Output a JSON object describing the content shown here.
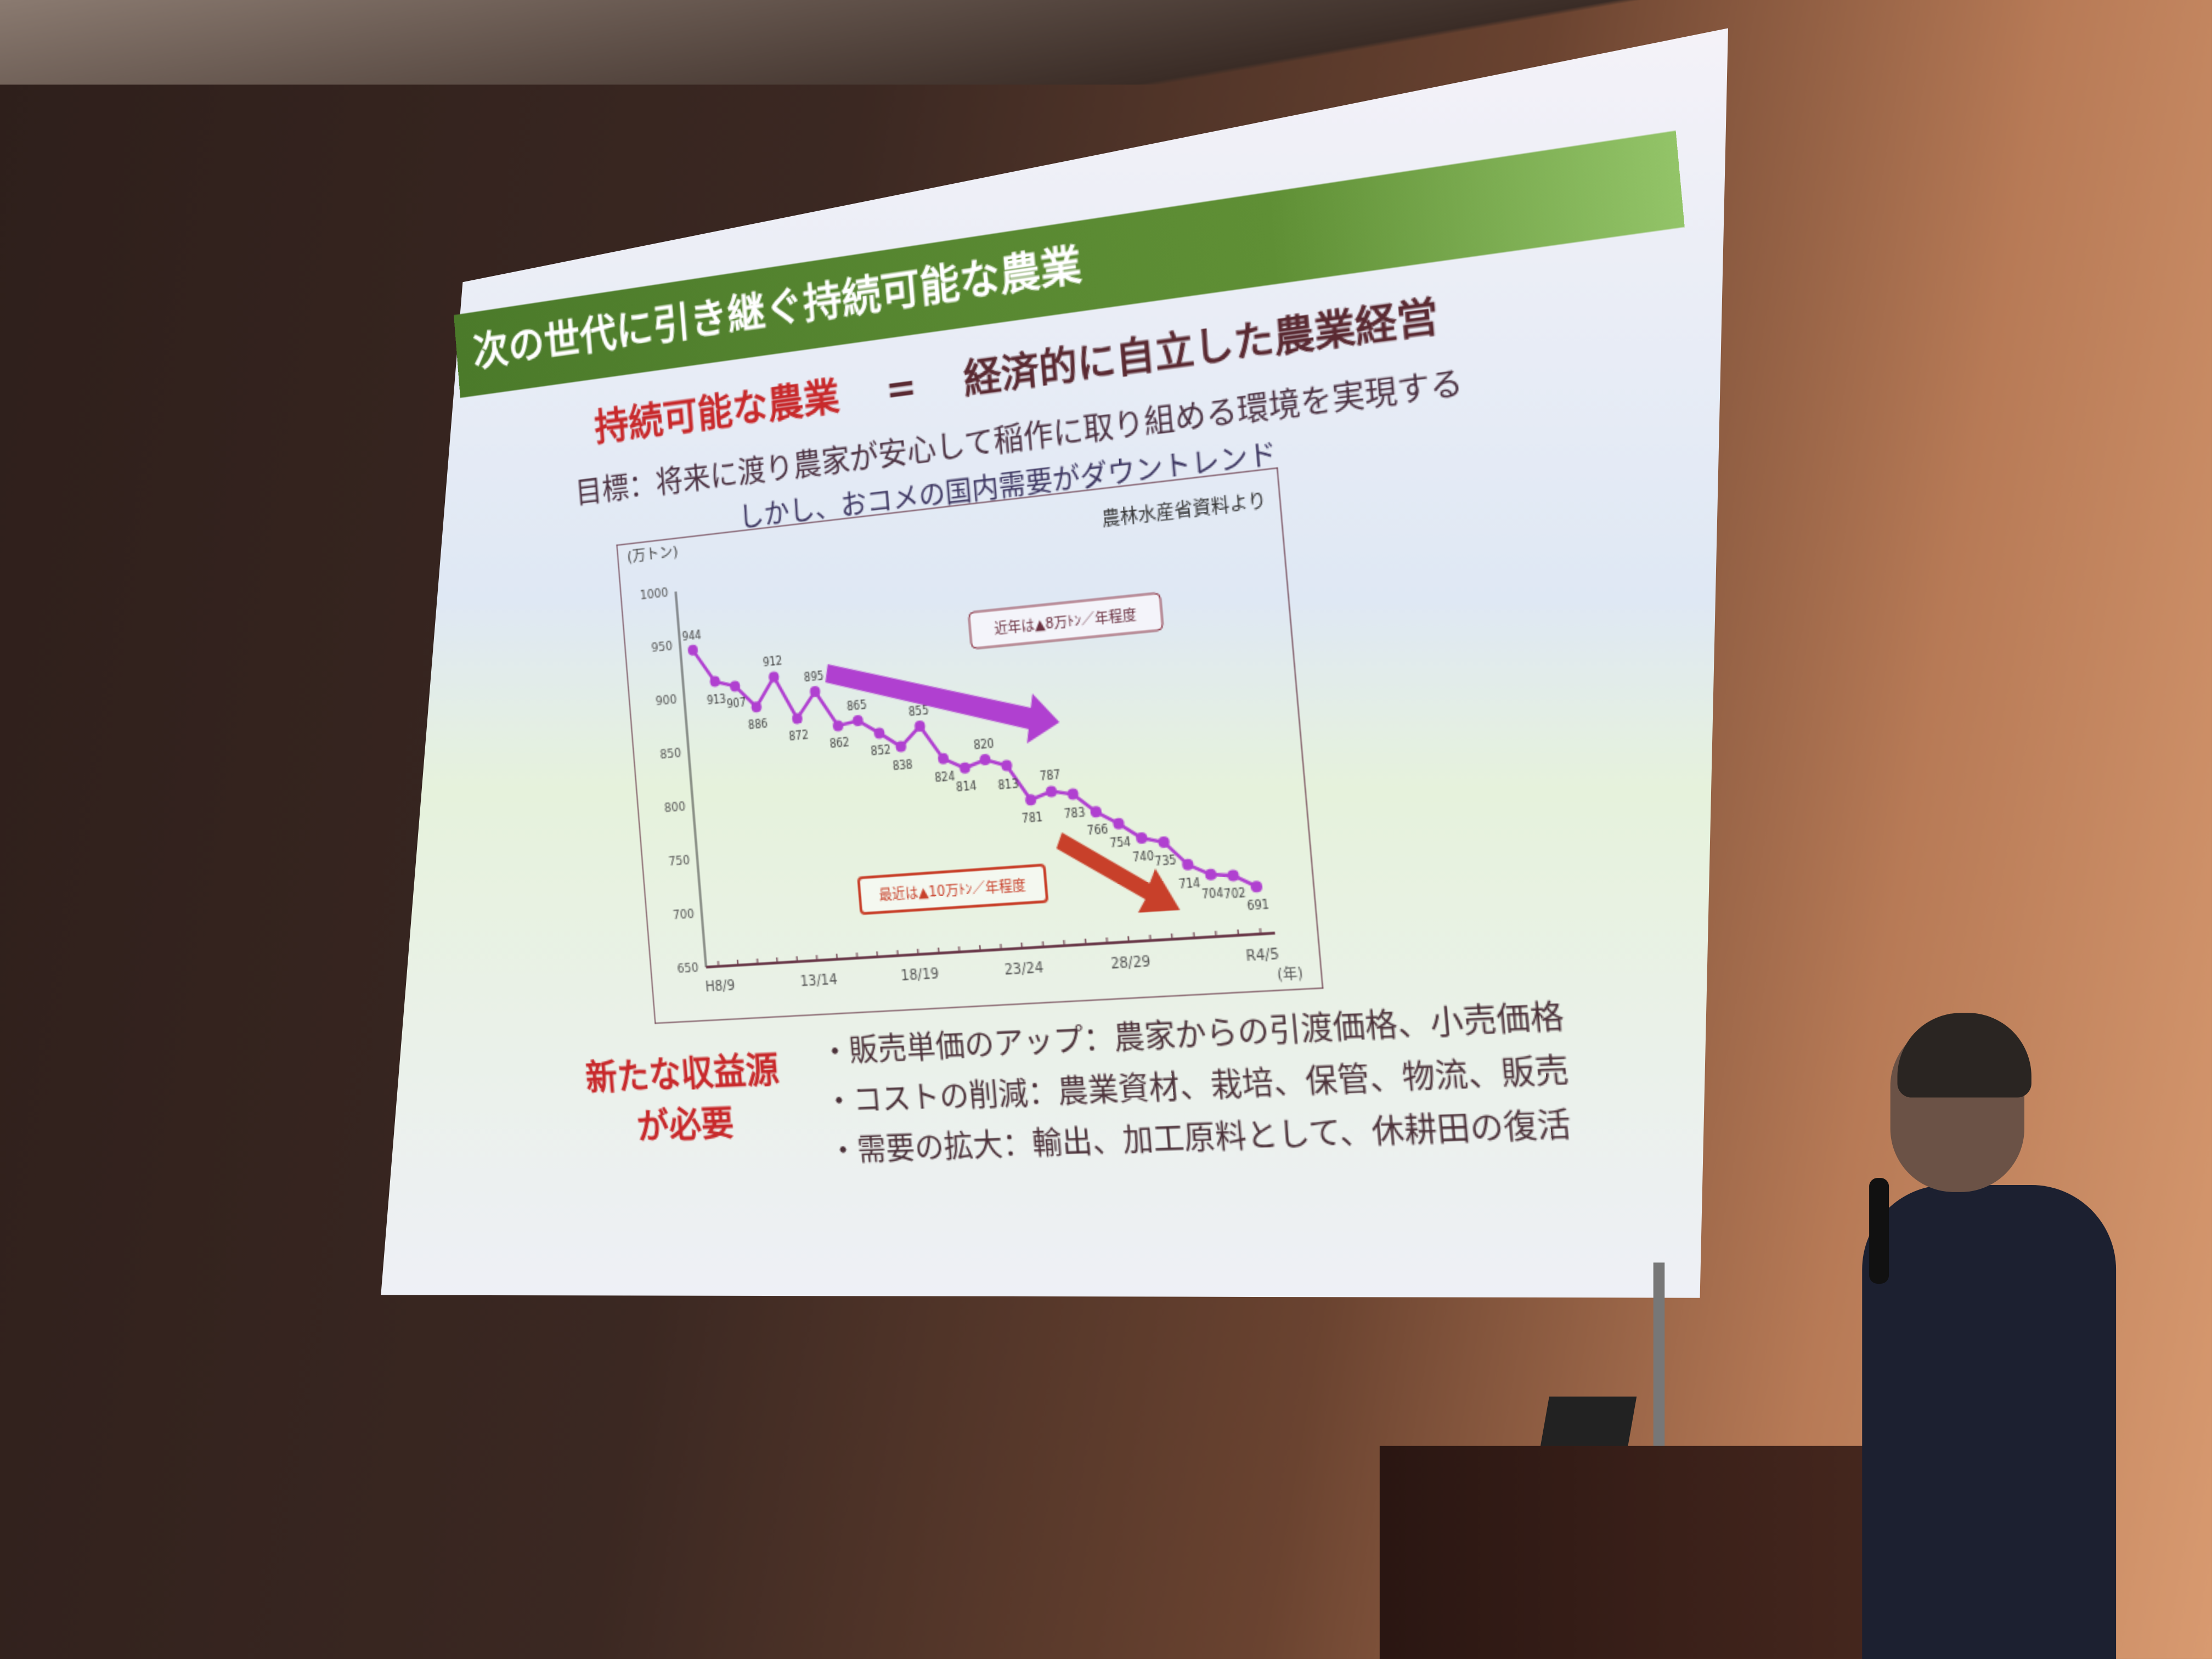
{
  "slide": {
    "title": "次の世代に引き継ぐ持続可能な農業",
    "equation_left": "持続可能な農業",
    "equation_sign": "=",
    "equation_right": "経済的に自立した農業経営",
    "goal": "目標：将来に渡り農家が安心して稲作に取り組める環境を実現する",
    "chart_subtitle": "しかし、おコメの国内需要がダウントレンド",
    "need_line1": "新たな収益源",
    "need_line2": "が必要",
    "bullets": [
      "・販売単価のアップ：農家からの引渡価格、小売価格",
      "・コストの削減：農業資材、栽培、保管、物流、販売",
      "・需要の拡大：輸出、加工原料として、休耕田の復活"
    ],
    "colors": {
      "header_green": "#5f8f35",
      "accent_red": "#c8292b",
      "series_purple": "#b040d0",
      "arrow_red": "#c8402a"
    }
  },
  "chart_data": {
    "type": "line",
    "ylabel": "(万トン)",
    "xlabel": "(年)",
    "source": "農林水産省資料より",
    "ylim": [
      650,
      1000
    ],
    "yticks": [
      650,
      700,
      750,
      800,
      850,
      900,
      950,
      1000
    ],
    "xtick_labels": [
      "H8/9",
      "13/14",
      "18/19",
      "23/24",
      "28/29",
      "R4/5"
    ],
    "xtick_positions": [
      0,
      5,
      10,
      15,
      20,
      26
    ],
    "values": [
      944,
      913,
      907,
      886,
      912,
      872,
      895,
      862,
      865,
      852,
      838,
      855,
      824,
      814,
      820,
      813,
      781,
      787,
      783,
      766,
      754,
      740,
      735,
      714,
      704,
      702,
      691
    ],
    "annotations": [
      {
        "text": "近年は▲8万ﾄﾝ／年程度",
        "color": "#b040d0"
      },
      {
        "text": "最近は▲10万ﾄﾝ／年程度",
        "color": "#c8402a"
      }
    ],
    "grid": false
  }
}
